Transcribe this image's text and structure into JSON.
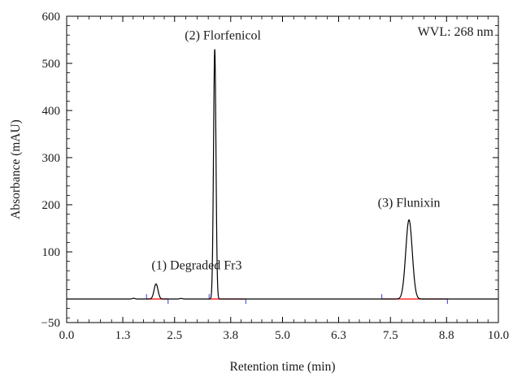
{
  "chart_data": {
    "type": "line",
    "xlabel": "Retention time (min)",
    "ylabel": "Absorbance (mAU)",
    "xlim": [
      0.0,
      10.0
    ],
    "ylim": [
      -50,
      600
    ],
    "x_ticks": [
      0.0,
      1.3,
      2.5,
      3.8,
      5.0,
      6.3,
      7.5,
      8.8,
      10.0
    ],
    "x_tick_labels": [
      "0.0",
      "1.3",
      "2.5",
      "3.8",
      "5.0",
      "6.3",
      "7.5",
      "8.8",
      "10.0"
    ],
    "y_ticks": [
      -50,
      100,
      200,
      300,
      400,
      500,
      600
    ],
    "y_tick_labels": [
      "−50",
      "100",
      "200",
      "300",
      "400",
      "500",
      "600"
    ],
    "wavelength_label": "WVL: 268 nm",
    "trace_color": "#000000",
    "integration_baseline_color": "#ff0000",
    "peak_marker_color": "#3b3bdc",
    "baseline_level": 0,
    "peaks": [
      {
        "label": "(1) Degraded Fr3",
        "retention_time": 2.07,
        "height": 32,
        "width_sigma": 0.045
      },
      {
        "label": "(2) Florfenicol",
        "retention_time": 3.43,
        "height": 530,
        "width_sigma": 0.028
      },
      {
        "label": "(3) Flunixin",
        "retention_time": 7.93,
        "height": 168,
        "width_sigma": 0.075
      }
    ],
    "minor_peaks": [
      {
        "retention_time": 1.55,
        "height": 1.5,
        "width_sigma": 0.03
      },
      {
        "retention_time": 2.65,
        "height": 1.2,
        "width_sigma": 0.03
      }
    ],
    "integration_windows": [
      {
        "start": 1.85,
        "end": 2.35
      },
      {
        "start": 3.3,
        "end": 4.15
      },
      {
        "start": 7.3,
        "end": 8.82
      }
    ]
  }
}
